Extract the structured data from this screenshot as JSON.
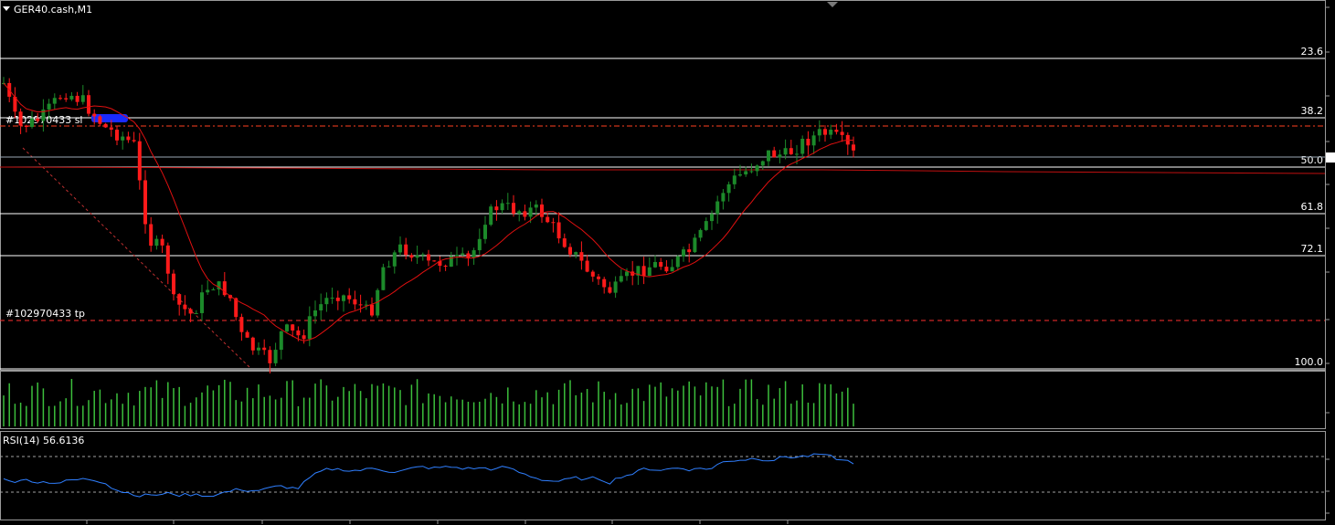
{
  "chart_data": [
    {
      "type": "candlestick",
      "symbol_label": "GER40.cash,M1",
      "fib_levels": [
        {
          "label": "23.6"
        },
        {
          "label": "38.2"
        },
        {
          "label": "50.0"
        },
        {
          "label": "61.8"
        },
        {
          "label": "72.1"
        },
        {
          "label": "100.0"
        }
      ],
      "order_lines": [
        {
          "label": "#102970433 sl",
          "style": "dashdot"
        },
        {
          "label": "#102970433 tp",
          "style": "dashed"
        }
      ],
      "colors": {
        "bull": "#1c8a2a",
        "bear": "#ff1a1a",
        "ma": "#e01010",
        "trend": "#c03030",
        "fib": "#ffffff",
        "volume": "#3cbf3c",
        "rsi": "#2f7fff",
        "order_line": "#ff3030"
      }
    },
    {
      "type": "bar",
      "panel": "volume"
    },
    {
      "type": "line",
      "panel": "rsi",
      "indicator_label": "RSI(14) 56.6136",
      "ylim": [
        0,
        100
      ],
      "levels": [
        30,
        70
      ]
    }
  ]
}
